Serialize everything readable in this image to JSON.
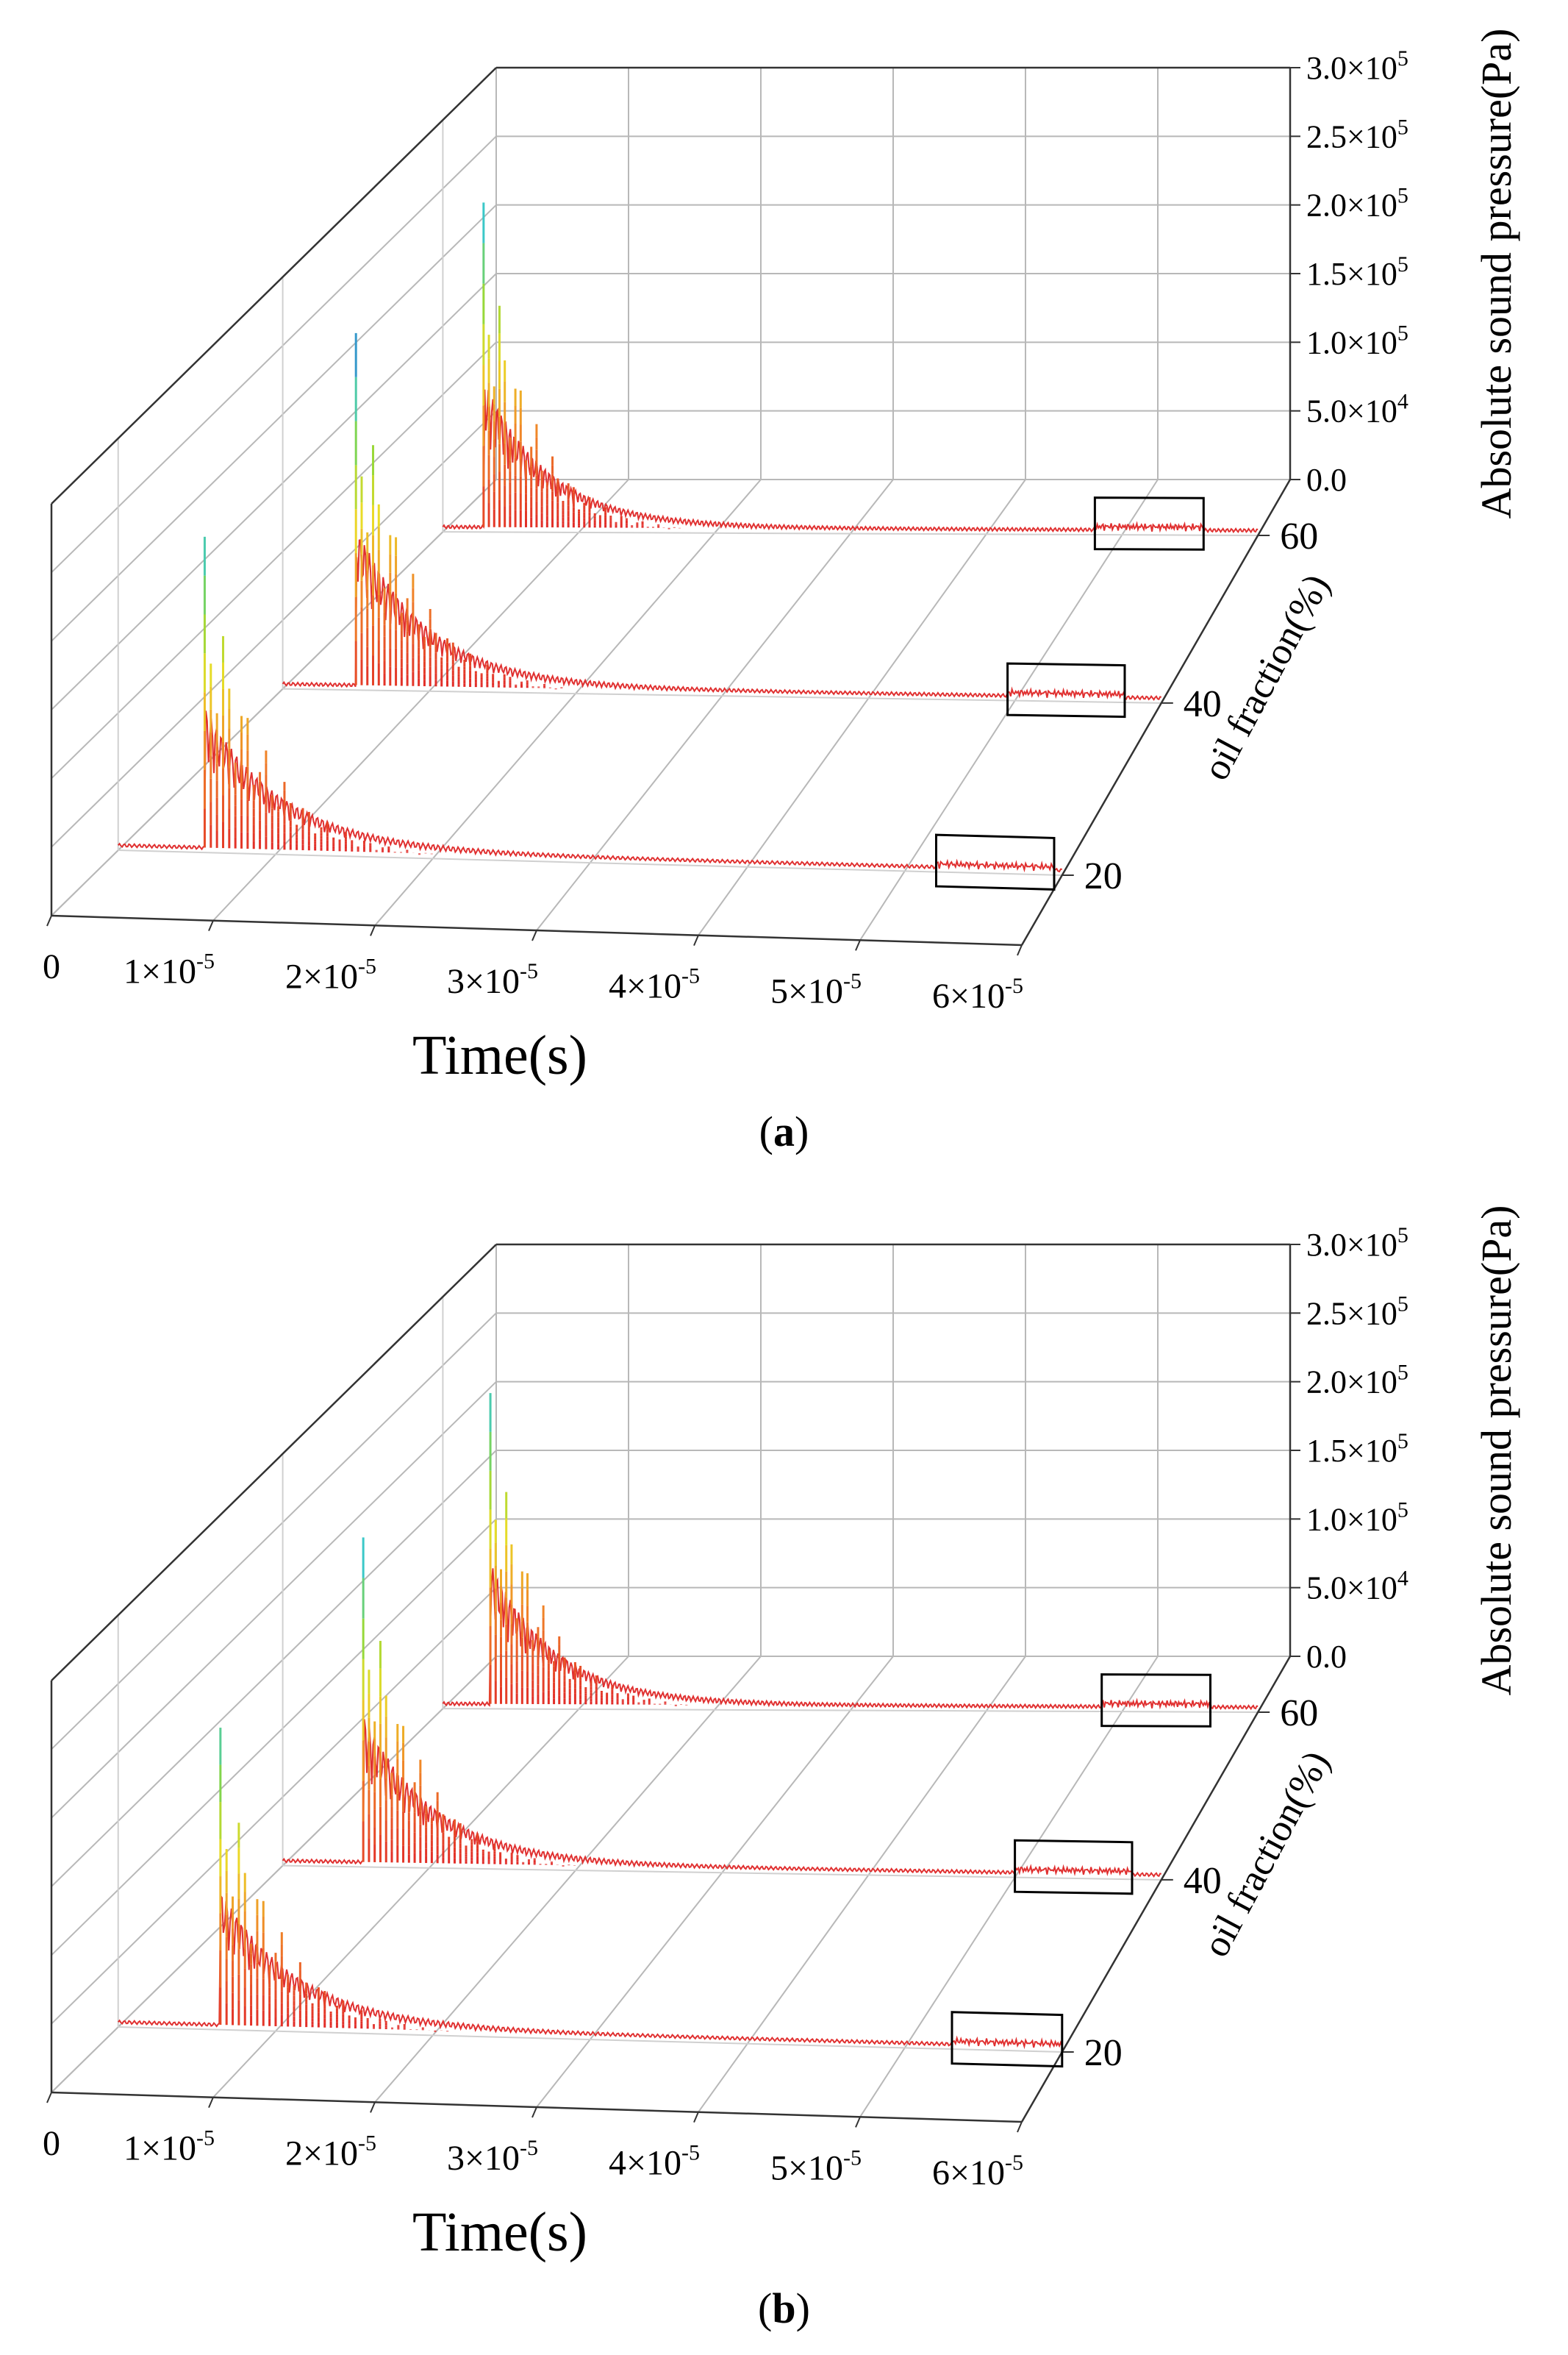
{
  "chart_data": [
    {
      "type": "line",
      "panel_label": "a",
      "title": "",
      "xlabel": "Time(s)",
      "ylabel": "oil fraction(%)",
      "zlabel": "Absolute sound pressure(Pa)",
      "x_ticks": [
        {
          "base": "0",
          "exp": ""
        },
        {
          "base": "1×10",
          "exp": "-5"
        },
        {
          "base": "2×10",
          "exp": "-5"
        },
        {
          "base": "3×10",
          "exp": "-5"
        },
        {
          "base": "4×10",
          "exp": "-5"
        },
        {
          "base": "5×10",
          "exp": "-5"
        },
        {
          "base": "6×10",
          "exp": "-5"
        }
      ],
      "z_ticks": [
        {
          "base": "0.0",
          "exp": ""
        },
        {
          "base": "5.0×10",
          "exp": "4"
        },
        {
          "base": "1.0×10",
          "exp": "5"
        },
        {
          "base": "1.5×10",
          "exp": "5"
        },
        {
          "base": "2.0×10",
          "exp": "5"
        },
        {
          "base": "2.5×10",
          "exp": "5"
        },
        {
          "base": "3.0×10",
          "exp": "5"
        }
      ],
      "xlim": [
        0,
        6e-05
      ],
      "zlim": [
        0,
        300000
      ],
      "series": [
        {
          "name": "20",
          "oil_fraction": 20,
          "peak_time": 5.5e-06,
          "peak_pressure": 230000,
          "highlight_window": [
            5.2e-05,
            5.95e-05
          ]
        },
        {
          "name": "40",
          "oil_fraction": 40,
          "peak_time": 5e-06,
          "peak_pressure": 260000,
          "highlight_window": [
            4.95e-05,
            5.75e-05
          ]
        },
        {
          "name": "60",
          "oil_fraction": 60,
          "peak_time": 3e-06,
          "peak_pressure": 240000,
          "highlight_window": [
            4.8e-05,
            5.6e-05
          ]
        }
      ]
    },
    {
      "type": "line",
      "panel_label": "b",
      "title": "",
      "xlabel": "Time(s)",
      "ylabel": "oil fraction(%)",
      "zlabel": "Absolute sound pressure(Pa)",
      "x_ticks": [
        {
          "base": "0",
          "exp": ""
        },
        {
          "base": "1×10",
          "exp": "-5"
        },
        {
          "base": "2×10",
          "exp": "-5"
        },
        {
          "base": "3×10",
          "exp": "-5"
        },
        {
          "base": "4×10",
          "exp": "-5"
        },
        {
          "base": "5×10",
          "exp": "-5"
        },
        {
          "base": "6×10",
          "exp": "-5"
        }
      ],
      "z_ticks": [
        {
          "base": "0.0",
          "exp": ""
        },
        {
          "base": "5.0×10",
          "exp": "4"
        },
        {
          "base": "1.0×10",
          "exp": "5"
        },
        {
          "base": "1.5×10",
          "exp": "5"
        },
        {
          "base": "2.0×10",
          "exp": "5"
        },
        {
          "base": "2.5×10",
          "exp": "5"
        },
        {
          "base": "3.0×10",
          "exp": "5"
        }
      ],
      "xlim": [
        0,
        6e-05
      ],
      "zlim": [
        0,
        300000
      ],
      "series": [
        {
          "name": "20",
          "oil_fraction": 20,
          "peak_time": 6.5e-06,
          "peak_pressure": 220000,
          "highlight_window": [
            5.3e-05,
            6e-05
          ]
        },
        {
          "name": "40",
          "oil_fraction": 40,
          "peak_time": 5.5e-06,
          "peak_pressure": 240000,
          "highlight_window": [
            5e-05,
            5.8e-05
          ]
        },
        {
          "name": "60",
          "oil_fraction": 60,
          "peak_time": 3.5e-06,
          "peak_pressure": 230000,
          "highlight_window": [
            4.85e-05,
            5.65e-05
          ]
        }
      ]
    }
  ]
}
